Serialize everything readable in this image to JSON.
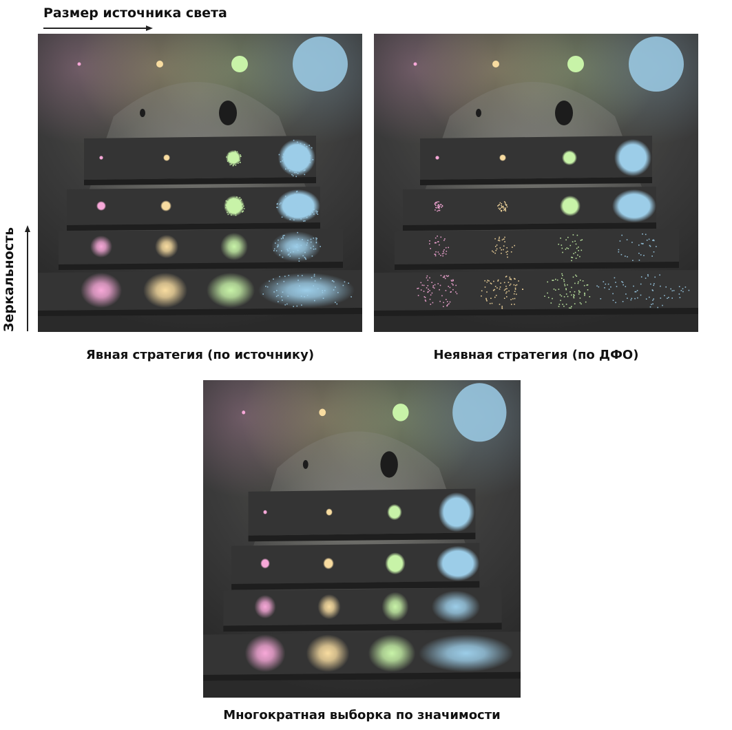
{
  "axes": {
    "horizontal_label": "Размер источника света",
    "vertical_label": "Зеркальность"
  },
  "panels": [
    {
      "id": "explicit",
      "caption": "Явная стратегия (по источнику)",
      "mode": "light-sampling"
    },
    {
      "id": "implicit",
      "caption": "Неявная стратегия (по ДФО)",
      "mode": "brdf-sampling"
    },
    {
      "id": "mis",
      "caption": "Многократная выборка по значимости",
      "mode": "mis"
    }
  ],
  "light_colors": [
    "#f7a8d8",
    "#f8dca0",
    "#c8f3a8",
    "#9ccde8"
  ],
  "background_color": "#3a3a3a"
}
